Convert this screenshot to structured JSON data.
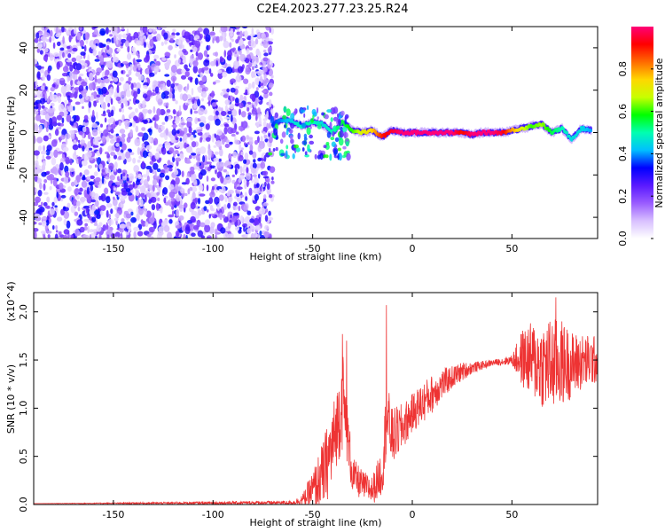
{
  "title": "C2E4.2023.277.23.25.R24",
  "chart_data": [
    {
      "type": "heatmap",
      "xlabel": "Height of straight line (km)",
      "ylabel": "Frequency (Hz)",
      "xlim": [
        -190,
        93
      ],
      "ylim": [
        -50,
        50
      ],
      "xticks": [
        -150,
        -100,
        -50,
        0,
        50
      ],
      "yticks": [
        -40,
        -20,
        0,
        20,
        40
      ],
      "colorbar": {
        "label": "Normalized spectral amplitude",
        "range": [
          0,
          1
        ],
        "ticks": [
          0.0,
          0.2,
          0.4,
          0.6,
          0.8
        ],
        "tick_labels": [
          "0.0",
          "0.2",
          "0.4",
          "0.6",
          "0.8"
        ],
        "colormap": [
          "#ffffff",
          "#d8c0ff",
          "#9a5cff",
          "#5a1aff",
          "#0000ff",
          "#00bfff",
          "#00ffb0",
          "#00ff00",
          "#c8ff00",
          "#ffd700",
          "#ff6a00",
          "#ff0000",
          "#ff0077"
        ]
      },
      "noise_region": {
        "x": [
          -190,
          -70
        ],
        "amplitude": [
          0.05,
          0.35
        ]
      },
      "ridge": {
        "x": [
          -70,
          -65,
          -60,
          -55,
          -50,
          -45,
          -40,
          -35,
          -30,
          -25,
          -20,
          -15,
          -10,
          -5,
          0,
          5,
          10,
          15,
          20,
          25,
          30,
          35,
          40,
          45,
          50,
          55,
          60,
          65,
          70,
          75,
          80,
          85,
          90
        ],
        "frequency": [
          4,
          6,
          5,
          3,
          5,
          4,
          0,
          5,
          1,
          0,
          1,
          -2,
          1,
          0,
          0,
          0,
          0,
          0,
          0,
          0,
          -1,
          0,
          0,
          0,
          1,
          2,
          3,
          4,
          0,
          2,
          -3,
          2,
          1
        ],
        "amplitude": [
          0.35,
          0.4,
          0.45,
          0.5,
          0.5,
          0.45,
          0.5,
          0.55,
          0.6,
          0.7,
          0.75,
          0.9,
          0.95,
          1.0,
          1.0,
          1.0,
          1.0,
          1.0,
          1.0,
          0.9,
          1.0,
          1.0,
          1.0,
          0.95,
          0.8,
          0.7,
          0.6,
          0.65,
          0.55,
          0.5,
          0.45,
          0.45,
          0.4
        ]
      }
    },
    {
      "type": "line",
      "xlabel": "Height of straight line (km)",
      "ylabel": "SNR (10 * v/v)",
      "scale_label": "(x10^4)",
      "xlim": [
        -190,
        93
      ],
      "ylim": [
        0,
        2.2
      ],
      "xticks": [
        -150,
        -100,
        -50,
        0,
        50
      ],
      "yticks": [
        0.0,
        0.5,
        1.0,
        1.5,
        2.0
      ],
      "ytick_labels": [
        "0.0",
        "0.5",
        "1.0",
        "1.5",
        "2.0"
      ],
      "color": "#ee3333",
      "envelope": {
        "x": [
          -190,
          -60,
          -55,
          -50,
          -45,
          -40,
          -38,
          -35,
          -33,
          -30,
          -25,
          -20,
          -15,
          -13,
          -10,
          -5,
          0,
          5,
          10,
          15,
          20,
          25,
          30,
          40,
          50,
          55,
          60,
          65,
          70,
          75,
          80,
          85,
          93
        ],
        "mean": [
          0.01,
          0.02,
          0.05,
          0.15,
          0.3,
          0.6,
          0.8,
          1.1,
          0.8,
          0.3,
          0.2,
          0.15,
          0.35,
          0.9,
          0.7,
          0.8,
          0.95,
          1.05,
          1.15,
          1.25,
          1.32,
          1.38,
          1.42,
          1.47,
          1.5,
          1.52,
          1.5,
          1.45,
          1.45,
          1.47,
          1.45,
          1.48,
          1.5
        ],
        "spread": [
          0.0,
          0.02,
          0.06,
          0.2,
          0.35,
          0.45,
          0.4,
          0.55,
          0.35,
          0.2,
          0.15,
          0.15,
          0.25,
          0.4,
          0.3,
          0.25,
          0.2,
          0.22,
          0.2,
          0.16,
          0.12,
          0.1,
          0.06,
          0.03,
          0.05,
          0.3,
          0.4,
          0.45,
          0.5,
          0.45,
          0.35,
          0.3,
          0.25
        ]
      },
      "peaks": [
        {
          "x": -35,
          "y": 1.77
        },
        {
          "x": -33,
          "y": 1.7
        },
        {
          "x": -13,
          "y": 2.07
        },
        {
          "x": 72,
          "y": 2.15
        }
      ]
    }
  ]
}
